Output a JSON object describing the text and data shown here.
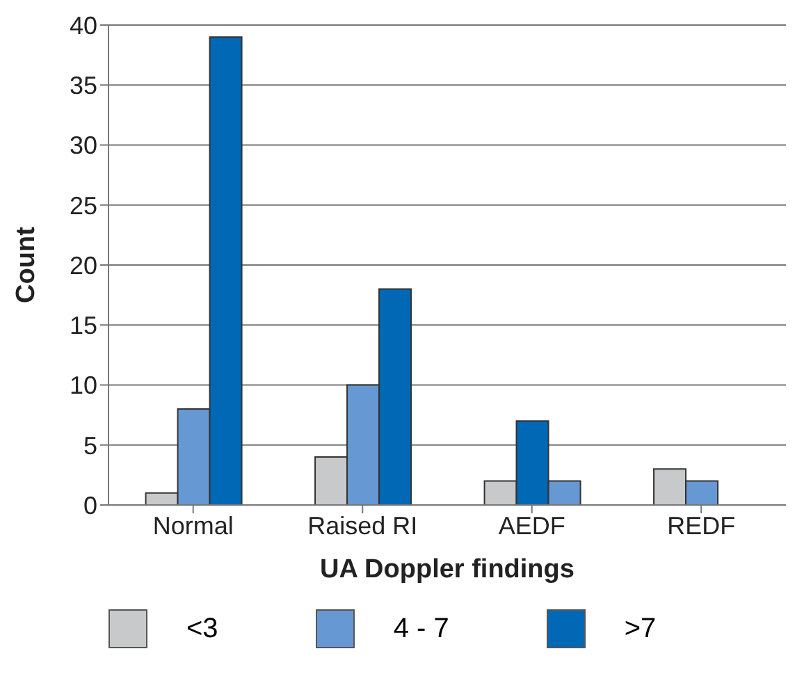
{
  "chart_data": {
    "type": "bar",
    "xlabel": "UA Doppler findings",
    "ylabel": "Count",
    "categories": [
      "Normal",
      "Raised RI",
      "AEDF",
      "REDF"
    ],
    "series": [
      {
        "name": "<3",
        "color": "#c8c9cb",
        "values": [
          1,
          4,
          2,
          3
        ]
      },
      {
        "name": "4 - 7",
        "color": "#6699d3",
        "colors": [
          "#6699d3",
          "#6699d3",
          "#0068b5",
          "#6699d3"
        ],
        "values": [
          8,
          10,
          7,
          2
        ]
      },
      {
        "name": ">7",
        "color": "#0068b5",
        "colors": [
          "#0068b5",
          "#0068b5",
          "#6699d3",
          "#0068b5"
        ],
        "values": [
          39,
          18,
          2,
          0
        ]
      }
    ],
    "ylim": [
      0,
      40
    ],
    "yticks": [
      0,
      5,
      10,
      15,
      20,
      25,
      30,
      35,
      40
    ],
    "grid": "y",
    "legend": "bottom"
  }
}
